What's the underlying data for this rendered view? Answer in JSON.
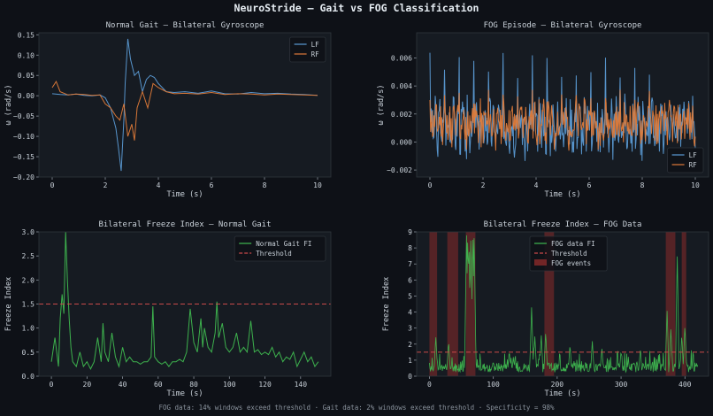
{
  "figure": {
    "title": "NeuroStride — Gait vs FOG Classification",
    "footer": "FOG data: 14% windows exceed threshold  ·  Gait data: 2% windows exceed threshold  ·  Specificity = 98%",
    "colors": {
      "background": "#0e1117",
      "axes_bg": "#161b22",
      "text": "#c9d1d9",
      "lf": "#5b9bd5",
      "rf": "#e07b39",
      "fi": "#3fb950",
      "threshold": "#c94a4a",
      "fog": "#8b2a2a"
    }
  },
  "chart_data": [
    {
      "id": "tl",
      "type": "line",
      "title": "Normal Gait — Bilateral Gyroscope",
      "xlabel": "Time (s)",
      "ylabel": "ω (rad/s)",
      "xlim": [
        -0.5,
        10.5
      ],
      "ylim": [
        -0.2,
        0.155
      ],
      "xticks": [
        0,
        2,
        4,
        6,
        8,
        10
      ],
      "yticks": [
        -0.2,
        -0.15,
        -0.1,
        -0.05,
        0.0,
        0.05,
        0.1,
        0.15
      ],
      "ytick_decimals": 2,
      "legend": "top-right",
      "series": [
        {
          "name": "LF",
          "color": "#5b9bd5",
          "x": [
            0,
            0.3,
            0.6,
            0.9,
            1.2,
            1.5,
            1.8,
            2.0,
            2.2,
            2.4,
            2.5,
            2.6,
            2.7,
            2.75,
            2.85,
            2.95,
            3.1,
            3.25,
            3.4,
            3.55,
            3.7,
            3.85,
            4.0,
            4.3,
            4.6,
            5.0,
            5.5,
            6.0,
            6.5,
            7.0,
            7.5,
            8.0,
            8.5,
            9.0,
            9.5,
            10.0
          ],
          "y": [
            0.005,
            0.003,
            0.002,
            0.004,
            0.001,
            0.0,
            0.002,
            -0.005,
            -0.03,
            -0.08,
            -0.13,
            -0.185,
            -0.06,
            0.03,
            0.14,
            0.09,
            0.05,
            0.06,
            0.01,
            0.04,
            0.05,
            0.045,
            0.03,
            0.01,
            0.008,
            0.01,
            0.006,
            0.012,
            0.005,
            0.004,
            0.008,
            0.005,
            0.006,
            0.004,
            0.003,
            0.001
          ]
        },
        {
          "name": "RF",
          "color": "#e07b39",
          "x": [
            0,
            0.15,
            0.3,
            0.6,
            0.9,
            1.2,
            1.5,
            1.8,
            2.0,
            2.2,
            2.4,
            2.55,
            2.7,
            2.85,
            3.0,
            3.1,
            3.2,
            3.4,
            3.6,
            3.8,
            4.0,
            4.3,
            4.6,
            5.0,
            5.5,
            6.0,
            6.5,
            7.0,
            7.5,
            8.0,
            8.5,
            9.0,
            9.5,
            10.0
          ],
          "y": [
            0.02,
            0.035,
            0.01,
            0.002,
            0.004,
            0.003,
            0.001,
            0.002,
            -0.02,
            -0.03,
            -0.05,
            -0.06,
            -0.02,
            -0.1,
            -0.07,
            -0.11,
            -0.03,
            0.01,
            -0.03,
            0.03,
            0.02,
            0.01,
            0.005,
            0.006,
            0.004,
            0.008,
            0.003,
            0.005,
            0.004,
            0.002,
            0.004,
            0.003,
            0.002,
            0.001
          ]
        }
      ]
    },
    {
      "id": "tr",
      "type": "line",
      "title": "FOG Episode — Bilateral Gyroscope",
      "xlabel": "Time (s)",
      "ylabel": "ω (rad/s)",
      "xlim": [
        -0.5,
        10.5
      ],
      "ylim": [
        -0.0025,
        0.0078
      ],
      "xticks": [
        0,
        2,
        4,
        6,
        8,
        10
      ],
      "yticks": [
        -0.002,
        0.0,
        0.002,
        0.004,
        0.006
      ],
      "ytick_decimals": 3,
      "legend": "bottom-right",
      "series": [
        {
          "name": "LF",
          "color": "#5b9bd5",
          "x0": 0,
          "x1": 10,
          "n": 400,
          "mean": 0.0012,
          "amp": 0.0018,
          "spike_every": 0.55,
          "spike": 0.0065,
          "noise": 0.0016,
          "seed": 3
        },
        {
          "name": "RF",
          "color": "#e07b39",
          "x0": 0,
          "x1": 10,
          "n": 400,
          "mean": 0.0014,
          "amp": 0.0011,
          "spike_every": 0.55,
          "spike": 0.0038,
          "noise": 0.0013,
          "seed": 11
        }
      ]
    },
    {
      "id": "bl",
      "type": "line",
      "title": "Bilateral Freeze Index — Normal Gait",
      "xlabel": "Time (s)",
      "ylabel": "Freeze Index",
      "xlim": [
        -7,
        157
      ],
      "ylim": [
        0,
        3.0
      ],
      "xticks": [
        0,
        20,
        40,
        60,
        80,
        100,
        120,
        140
      ],
      "yticks": [
        0.0,
        0.5,
        1.0,
        1.5,
        2.0,
        2.5,
        3.0
      ],
      "ytick_decimals": 1,
      "legend": "top-right",
      "threshold": {
        "name": "Threshold",
        "value": 1.5,
        "color": "#c94a4a"
      },
      "series": [
        {
          "name": "Normal Gait FI",
          "color": "#3fb950",
          "x": [
            0,
            2,
            4,
            5,
            6,
            7,
            8,
            9,
            10,
            11,
            12,
            14,
            16,
            18,
            20,
            22,
            24,
            26,
            28,
            29,
            30,
            32,
            34,
            36,
            38,
            40,
            42,
            44,
            46,
            48,
            50,
            52,
            54,
            56,
            57,
            58,
            60,
            62,
            64,
            66,
            68,
            70,
            72,
            74,
            76,
            78,
            80,
            82,
            84,
            85,
            86,
            88,
            90,
            92,
            93,
            94,
            96,
            98,
            100,
            102,
            104,
            106,
            108,
            110,
            112,
            114,
            116,
            118,
            120,
            122,
            124,
            126,
            128,
            130,
            132,
            134,
            136,
            138,
            140,
            142,
            144,
            146,
            148,
            150
          ],
          "y": [
            0.3,
            0.8,
            0.2,
            1.2,
            1.7,
            1.3,
            3.0,
            2.0,
            1.2,
            0.6,
            0.3,
            0.2,
            0.5,
            0.2,
            0.3,
            0.15,
            0.3,
            0.8,
            0.3,
            1.1,
            0.5,
            0.3,
            0.9,
            0.4,
            0.2,
            0.6,
            0.3,
            0.4,
            0.3,
            0.3,
            0.25,
            0.3,
            0.3,
            0.4,
            1.45,
            0.4,
            0.3,
            0.25,
            0.3,
            0.2,
            0.3,
            0.3,
            0.35,
            0.3,
            0.5,
            1.4,
            0.7,
            0.5,
            1.2,
            0.6,
            1.0,
            0.6,
            0.5,
            0.9,
            1.55,
            0.8,
            1.1,
            0.6,
            0.5,
            0.6,
            0.9,
            0.5,
            0.6,
            0.5,
            1.15,
            0.5,
            0.55,
            0.45,
            0.5,
            0.45,
            0.6,
            0.4,
            0.5,
            0.3,
            0.4,
            0.35,
            0.5,
            0.2,
            0.35,
            0.5,
            0.3,
            0.4,
            0.2,
            0.3
          ]
        }
      ]
    },
    {
      "id": "br",
      "type": "line",
      "title": "Bilateral Freeze Index — FOG Data",
      "xlabel": "Time (s)",
      "ylabel": "Freeze Index",
      "xlim": [
        -20,
        437
      ],
      "ylim": [
        0,
        9
      ],
      "xticks": [
        0,
        100,
        200,
        300,
        400
      ],
      "yticks": [
        0,
        1,
        2,
        3,
        4,
        5,
        6,
        7,
        8,
        9
      ],
      "ytick_decimals": 0,
      "legend": "top-left",
      "threshold": {
        "name": "Threshold",
        "value": 1.5,
        "color": "#c94a4a"
      },
      "events": {
        "name": "FOG events",
        "color": "#8b2a2a",
        "spans": [
          [
            0,
            12
          ],
          [
            28,
            45
          ],
          [
            57,
            72
          ],
          [
            180,
            195
          ],
          [
            370,
            385
          ],
          [
            395,
            402
          ]
        ]
      },
      "series": [
        {
          "name": "FOG data FI",
          "color": "#3fb950",
          "x0": 0,
          "x1": 420,
          "n": 500,
          "seed": 7,
          "peaks": [
            [
              10,
              2.5
            ],
            [
              30,
              2.2
            ],
            [
              58,
              9.0
            ],
            [
              60,
              9.0
            ],
            [
              62,
              8.5
            ],
            [
              65,
              9.0
            ],
            [
              68,
              9.0
            ],
            [
              70,
              9.0
            ],
            [
              125,
              1.6
            ],
            [
              160,
              4.4
            ],
            [
              165,
              2.5
            ],
            [
              175,
              2.6
            ],
            [
              182,
              2.8
            ],
            [
              220,
              2.0
            ],
            [
              255,
              2.2
            ],
            [
              270,
              1.8
            ],
            [
              300,
              1.6
            ],
            [
              330,
              1.6
            ],
            [
              372,
              4.1
            ],
            [
              378,
              3.0
            ],
            [
              388,
              7.5
            ],
            [
              400,
              3.2
            ],
            [
              395,
              2.6
            ]
          ]
        }
      ]
    }
  ]
}
